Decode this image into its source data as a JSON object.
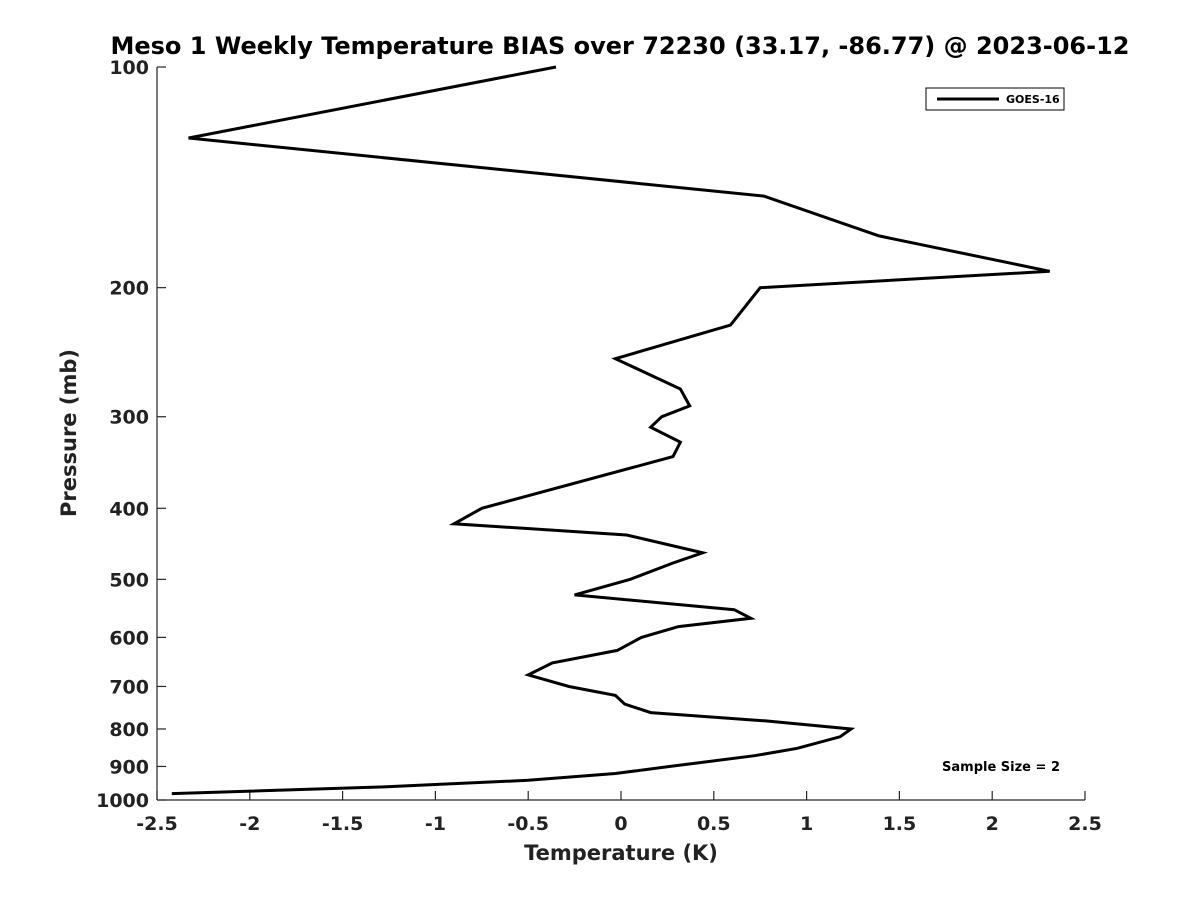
{
  "chart_data": {
    "type": "line",
    "title": "Meso 1 Weekly Temperature BIAS over 72230 (33.17, -86.77) @ 2023-06-12",
    "xlabel": "Temperature (K)",
    "ylabel": "Pressure (mb)",
    "xlim": [
      -2.5,
      2.5
    ],
    "ylim": [
      100,
      1000
    ],
    "y_scale": "log",
    "y_reversed": true,
    "grid": false,
    "legend_position": "top-right",
    "x_ticks": [
      "-2.5",
      "-2",
      "-1.5",
      "-1",
      "-0.5",
      "0",
      "0.5",
      "1",
      "1.5",
      "2",
      "2.5"
    ],
    "y_ticks": [
      "100",
      "200",
      "300",
      "400",
      "500",
      "600",
      "700",
      "800",
      "900",
      "1000"
    ],
    "series": [
      {
        "name": "GOES-16",
        "color": "#000000",
        "x": [
          -0.35,
          -2.33,
          0.77,
          1.39,
          2.31,
          0.75,
          0.59,
          -0.03,
          0.32,
          0.37,
          0.22,
          0.16,
          0.32,
          0.28,
          -0.75,
          -0.9,
          0.03,
          0.44,
          0.28,
          0.05,
          -0.25,
          0.61,
          0.7,
          0.31,
          0.11,
          -0.02,
          -0.37,
          -0.5,
          -0.28,
          -0.03,
          0.02,
          0.16,
          0.78,
          1.24,
          1.18,
          0.95,
          0.72,
          0.26,
          -0.03,
          -0.5,
          -1.3,
          -2.42
        ],
        "y": [
          100,
          125,
          150,
          170,
          190,
          200,
          225,
          250,
          275,
          290,
          300,
          310,
          325,
          340,
          400,
          420,
          435,
          460,
          475,
          500,
          525,
          550,
          565,
          580,
          600,
          625,
          650,
          675,
          700,
          720,
          740,
          760,
          780,
          800,
          820,
          850,
          870,
          900,
          920,
          940,
          960,
          980
        ]
      }
    ],
    "annotations": [
      "Sample Size = 2"
    ]
  }
}
